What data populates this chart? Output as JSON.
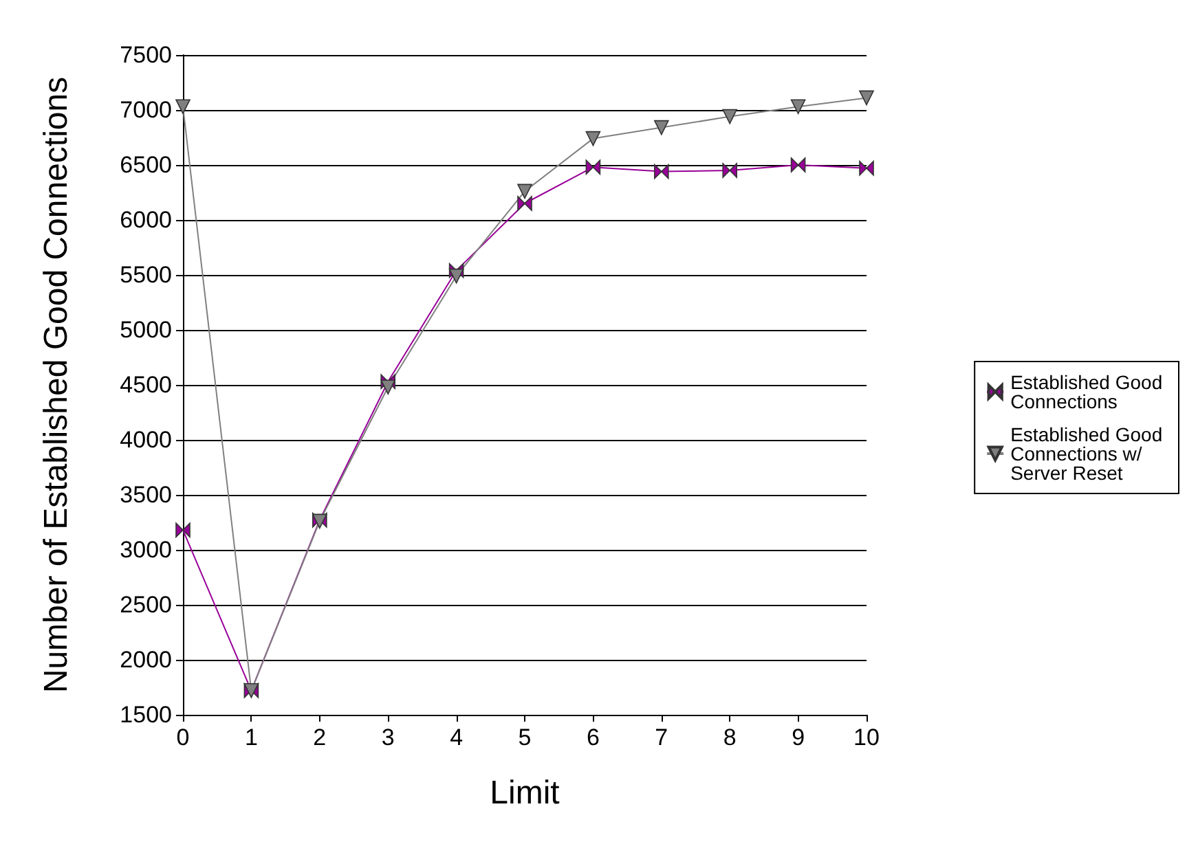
{
  "chart_data": {
    "type": "line",
    "xlabel": "Limit",
    "ylabel": "Number of Established Good Connections",
    "x": [
      0,
      1,
      2,
      3,
      4,
      5,
      6,
      7,
      8,
      9,
      10
    ],
    "xlim": [
      0,
      10
    ],
    "xticks": [
      0,
      1,
      2,
      3,
      4,
      5,
      6,
      7,
      8,
      9,
      10
    ],
    "ylim": [
      1500,
      7500
    ],
    "yticks": [
      1500,
      2000,
      2500,
      3000,
      3500,
      4000,
      4500,
      5000,
      5500,
      6000,
      6500,
      7000,
      7500
    ],
    "grid": "y",
    "legend": "right",
    "series": [
      {
        "name": "Established Good Connections",
        "color": "#990099",
        "marker": "diamond",
        "values": [
          3180,
          1720,
          3270,
          4530,
          5540,
          6150,
          6480,
          6440,
          6450,
          6500,
          6470
        ]
      },
      {
        "name": "Established Good Connections w/ Server Reset",
        "color": "#808080",
        "marker": "triangle",
        "values": [
          7030,
          1720,
          3260,
          4480,
          5490,
          6260,
          6740,
          6840,
          6940,
          7030,
          7110
        ]
      }
    ]
  }
}
